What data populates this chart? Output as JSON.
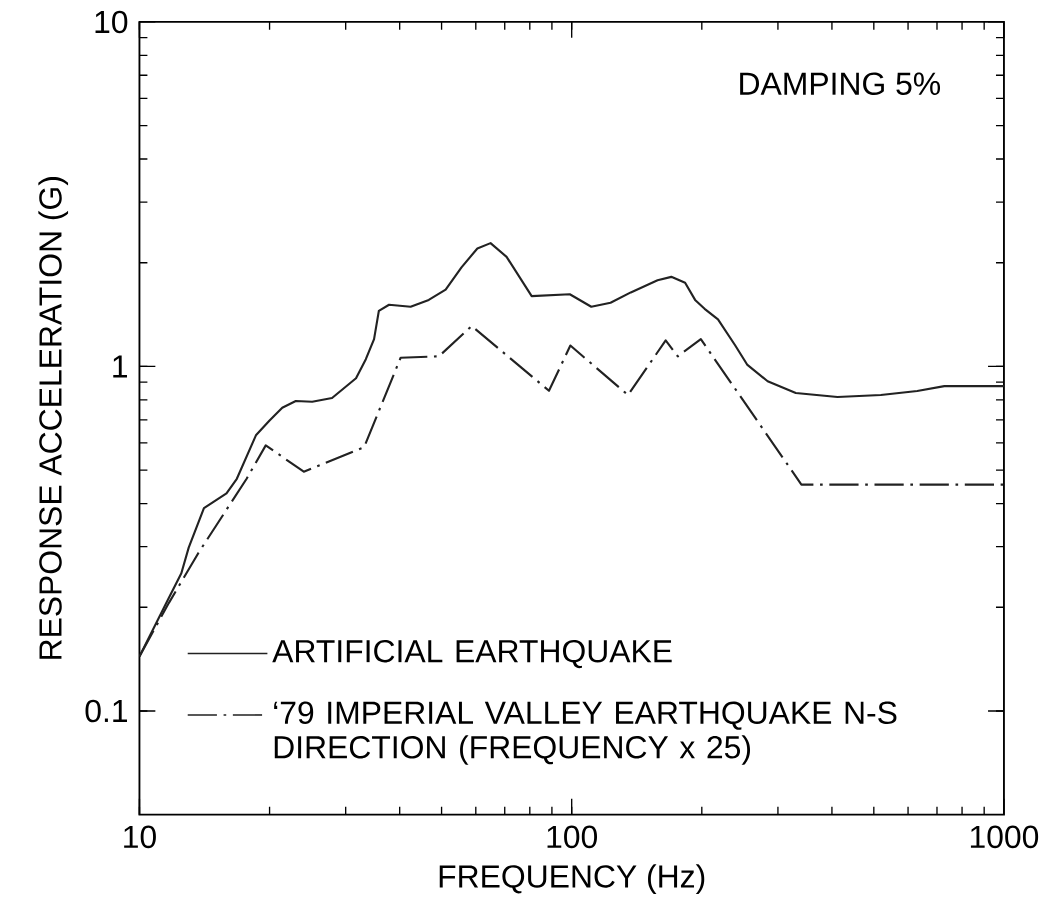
{
  "chart_data": {
    "type": "line",
    "xlabel": "FREQUENCY (Hz)",
    "ylabel": "RESPONSE ACCELERATION (G)",
    "annotations": [
      "DAMPING 5%"
    ],
    "log": "xy",
    "xlim": [
      10,
      1000
    ],
    "ylim": [
      0.05,
      10
    ],
    "xticks": [
      10,
      100,
      1000
    ],
    "yticks": [
      0.1,
      1,
      10
    ],
    "legend": "bottom left",
    "grid": false,
    "series": [
      {
        "name": "ARTIFICIAL EARTHQUAKE",
        "color": "#222222",
        "line_style": "solid",
        "x": [
          10,
          11.7,
          12.5,
          13.0,
          14.1,
          15.9,
          16.8,
          18.6,
          20,
          21.4,
          23,
          25.1,
          27.9,
          31.7,
          33.4,
          34.9,
          35.8,
          37.8,
          42.4,
          46.7,
          51.1,
          55.6,
          60.5,
          64.9,
          70.7,
          80.8,
          99,
          111,
          123,
          137,
          158,
          170,
          183,
          193,
          203,
          218,
          239,
          255,
          284,
          330,
          412,
          519,
          630,
          728,
          1000
        ],
        "values": [
          0.144,
          0.213,
          0.251,
          0.298,
          0.388,
          0.428,
          0.472,
          0.631,
          0.697,
          0.759,
          0.794,
          0.79,
          0.81,
          0.924,
          1.05,
          1.2,
          1.45,
          1.51,
          1.49,
          1.56,
          1.67,
          1.94,
          2.2,
          2.28,
          2.08,
          1.6,
          1.62,
          1.49,
          1.53,
          1.64,
          1.78,
          1.82,
          1.75,
          1.56,
          1.47,
          1.37,
          1.15,
          1.01,
          0.906,
          0.837,
          0.815,
          0.826,
          0.849,
          0.877,
          0.877
        ]
      },
      {
        "name": "‘79 IMPERIAL VALLEY EARTHQUAKE N-S DIRECTION (FREQUENCY x 25)",
        "color": "#222222",
        "line_style": "dashdot",
        "x": [
          10,
          11.7,
          13.7,
          17.7,
          19.6,
          24.0,
          33.1,
          40.2,
          49.3,
          58.7,
          88.6,
          99.3,
          135,
          165,
          176,
          199,
          340,
          1000
        ],
        "values": [
          0.144,
          0.206,
          0.288,
          0.472,
          0.59,
          0.495,
          0.583,
          1.06,
          1.07,
          1.31,
          0.85,
          1.15,
          0.826,
          1.19,
          1.07,
          1.2,
          0.454,
          0.454
        ]
      }
    ]
  }
}
